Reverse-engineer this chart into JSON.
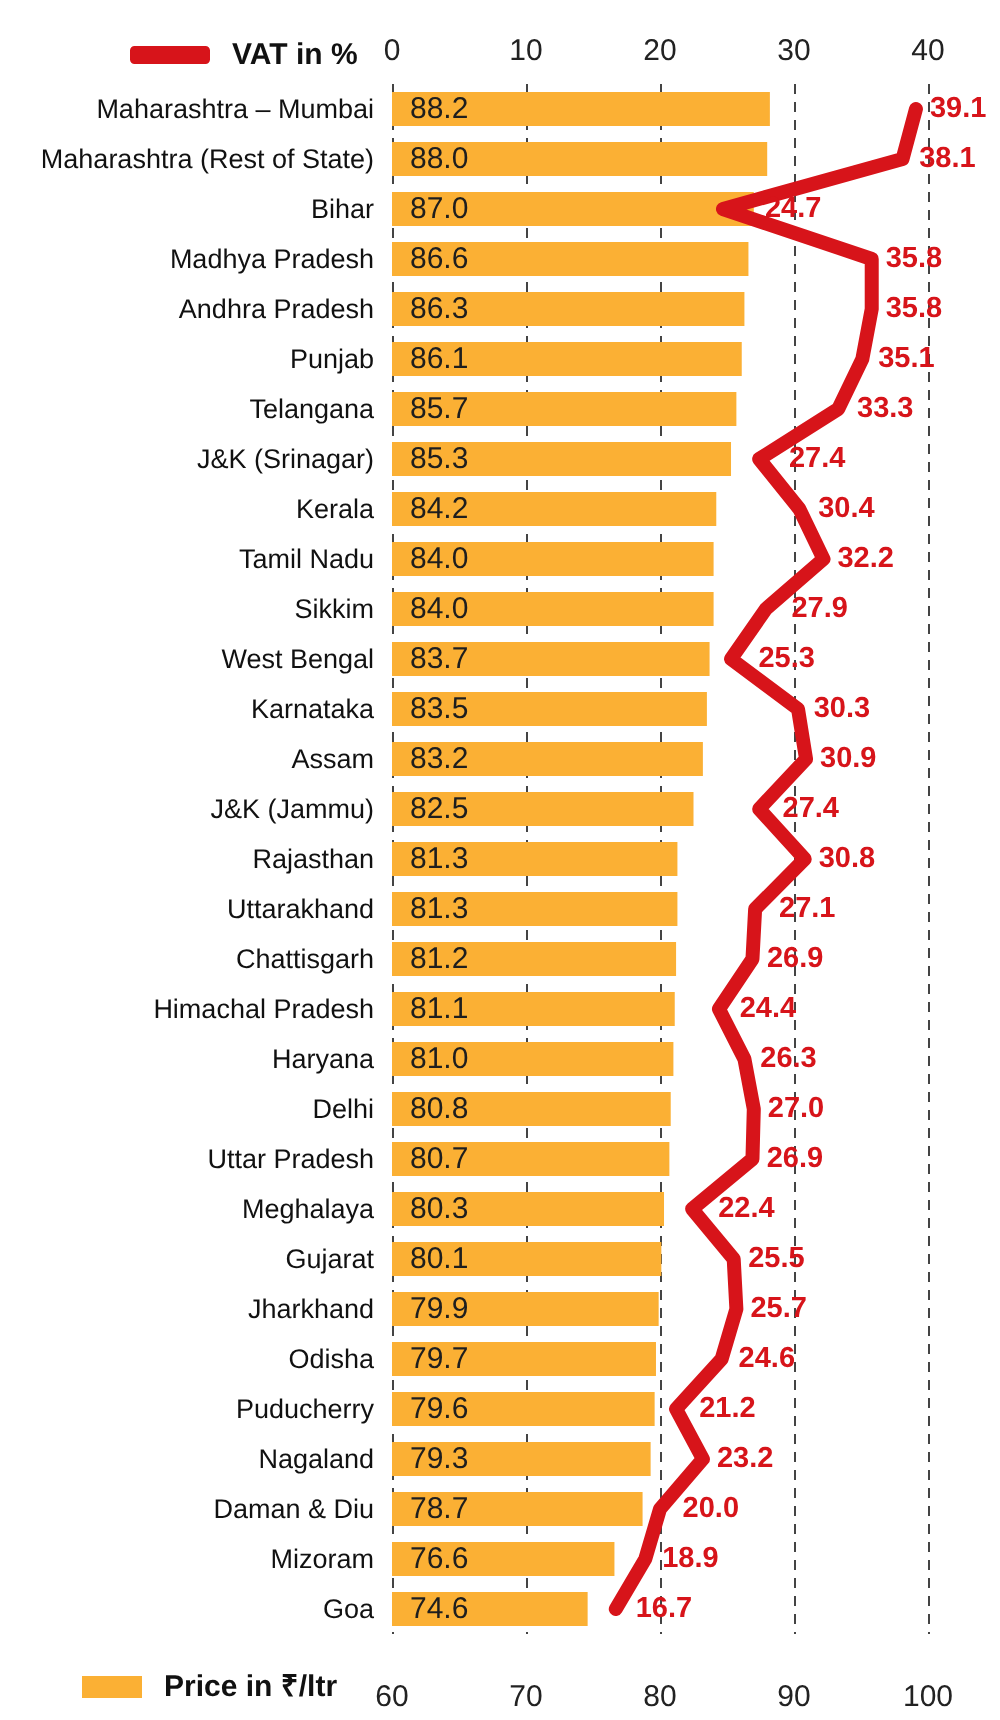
{
  "chart_data": {
    "type": "bar",
    "orientation": "horizontal",
    "categories": [
      "Maharashtra – Mumbai",
      "Maharashtra (Rest of State)",
      "Bihar",
      "Madhya Pradesh",
      "Andhra Pradesh",
      "Punjab",
      "Telangana",
      "J&K (Srinagar)",
      "Kerala",
      "Tamil Nadu",
      "Sikkim",
      "West Bengal",
      "Karnataka",
      "Assam",
      "J&K (Jammu)",
      "Rajasthan",
      "Uttarakhand",
      "Chattisgarh",
      "Himachal Pradesh",
      "Haryana",
      "Delhi",
      "Uttar Pradesh",
      "Meghalaya",
      "Gujarat",
      "Jharkhand",
      "Odisha",
      "Puducherry",
      "Nagaland",
      "Daman & Diu",
      "Mizoram",
      "Goa"
    ],
    "series": [
      {
        "name": "Price in ₹/ltr",
        "color": "#fbb034",
        "values": [
          88.2,
          88.0,
          87.0,
          86.6,
          86.3,
          86.1,
          85.7,
          85.3,
          84.2,
          84.0,
          84.0,
          83.7,
          83.5,
          83.2,
          82.5,
          81.3,
          81.3,
          81.2,
          81.1,
          81.0,
          80.8,
          80.7,
          80.3,
          80.1,
          79.9,
          79.7,
          79.6,
          79.3,
          78.7,
          76.6,
          74.6
        ],
        "value_labels": [
          "88.2",
          "88.0",
          "87.0",
          "86.6",
          "86.3",
          "86.1",
          "85.7",
          "85.3",
          "84.2",
          "84.0",
          "84.0",
          "83.7",
          "83.5",
          "83.2",
          "82.5",
          "81.3",
          "81.3",
          "81.2",
          "81.1",
          "81.0",
          "80.8",
          "80.7",
          "80.3",
          "80.1",
          "79.9",
          "79.7",
          "79.6",
          "79.3",
          "78.7",
          "76.6",
          "74.6"
        ]
      },
      {
        "name": "VAT in %",
        "type": "line",
        "axis": "x2",
        "color": "#d7141a",
        "values": [
          39.1,
          38.1,
          24.7,
          35.8,
          35.8,
          35.1,
          33.3,
          27.4,
          30.4,
          32.2,
          27.9,
          25.3,
          30.3,
          30.9,
          27.4,
          30.8,
          27.1,
          26.9,
          24.4,
          26.3,
          27.0,
          26.9,
          22.4,
          25.5,
          25.7,
          24.6,
          21.2,
          23.2,
          20.0,
          18.9,
          16.7
        ],
        "value_labels": [
          "39.1",
          "38.1",
          "24.7",
          "35.8",
          "35.8",
          "35.1",
          "33.3",
          "27.4",
          "30.4",
          "32.2",
          "27.9",
          "25.3",
          "30.3",
          "30.9",
          "27.4",
          "30.8",
          "27.1",
          "26.9",
          "24.4",
          "26.3",
          "27.0",
          "26.9",
          "22.4",
          "25.5",
          "25.7",
          "24.6",
          "21.2",
          "23.2",
          "20.0",
          "18.9",
          "16.7"
        ]
      }
    ],
    "xlim": [
      60,
      100
    ],
    "xticks": [
      60,
      70,
      80,
      90,
      100
    ],
    "x2lim": [
      0,
      40
    ],
    "x2ticks": [
      0,
      10,
      20,
      30,
      40
    ],
    "grid": "x",
    "legend": "left",
    "marker": "none",
    "line_style": "solid"
  }
}
